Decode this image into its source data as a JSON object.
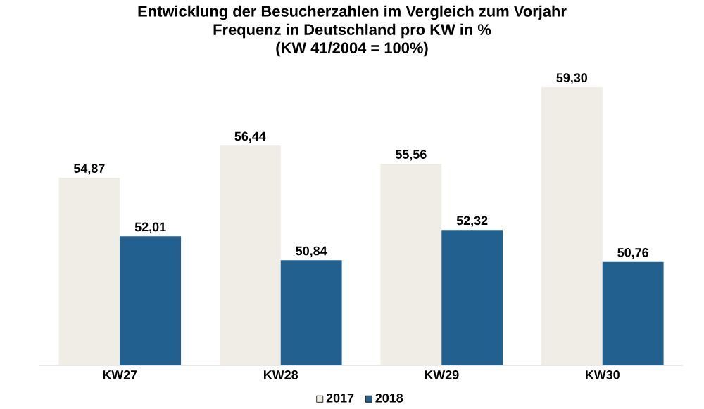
{
  "chart_data": {
    "type": "bar",
    "title": "Entwicklung der Besucherzahlen im Vergleich zum Vorjahr",
    "subtitle": "Frequenz in Deutschland pro KW in %",
    "annotations": [
      "(KW 41/2004 = 100%)"
    ],
    "categories": [
      "KW27",
      "KW28",
      "KW29",
      "KW30"
    ],
    "series": [
      {
        "name": "2017",
        "color": "#f0ede6",
        "values": [
          54.87,
          56.44,
          55.56,
          59.3
        ],
        "value_labels": [
          "54,87",
          "56,44",
          "55,56",
          "59,30"
        ]
      },
      {
        "name": "2018",
        "color": "#21608f",
        "values": [
          52.01,
          50.84,
          52.32,
          50.76
        ],
        "value_labels": [
          "52,01",
          "50,84",
          "52,32",
          "50,76"
        ]
      }
    ],
    "ylim": [
      45.7,
      59.3
    ],
    "tick_labels": "x",
    "legend": "bottom"
  }
}
